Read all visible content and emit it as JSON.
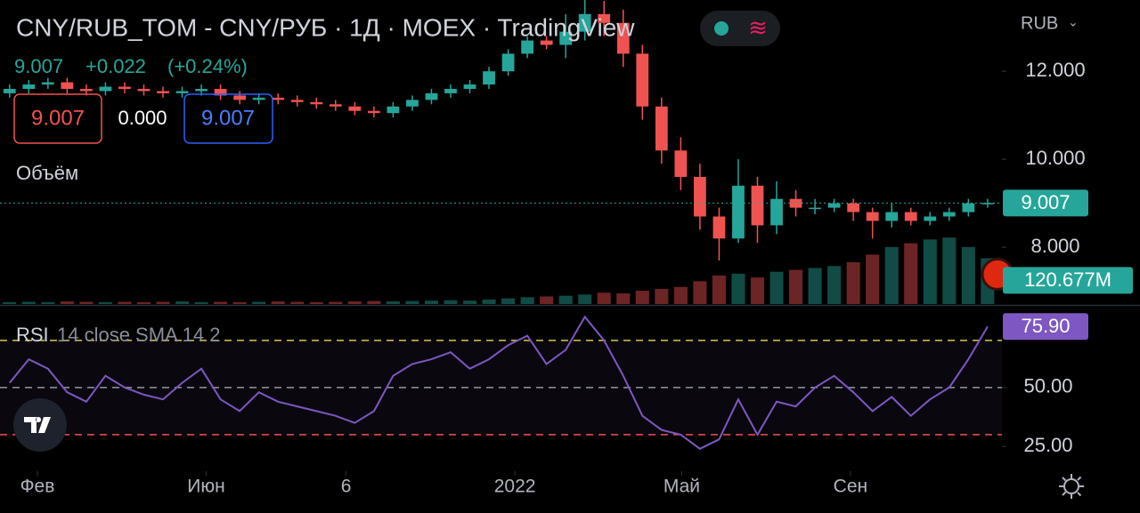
{
  "chart_data": {
    "type": "candlestick",
    "title": "CNY/RUB_TOM - CNY/РУБ · 1Д · MOEX · TradingView",
    "last_price": "9.007",
    "change": "+0.022",
    "change_percent": "(+0.24%)",
    "ohlc_boxes": [
      "9.007",
      "0.000",
      "9.007"
    ],
    "volume_label": "Объём",
    "currency": "RUB",
    "price_tag": "9.007",
    "volume_tag": "120.677M",
    "up_color": "#26a69a",
    "down_color": "#ef5350",
    "x": [
      1,
      3,
      5,
      7,
      9,
      11,
      13,
      15,
      17,
      19,
      21,
      23,
      25,
      27,
      29,
      31,
      33,
      35,
      37,
      39,
      41,
      43,
      45,
      47,
      49,
      51,
      53,
      55,
      57,
      59,
      61,
      63,
      65,
      67,
      69,
      71,
      73,
      75,
      77,
      79,
      81,
      83,
      85,
      87,
      89,
      91,
      93,
      95,
      97,
      99,
      101,
      103
    ],
    "open": [
      11.5,
      11.6,
      11.7,
      11.75,
      11.6,
      11.55,
      11.65,
      11.6,
      11.55,
      11.5,
      11.55,
      11.6,
      11.45,
      11.35,
      11.4,
      11.35,
      11.3,
      11.25,
      11.2,
      11.1,
      11.05,
      11.2,
      11.35,
      11.5,
      11.6,
      11.7,
      12.0,
      12.4,
      12.7,
      12.6,
      12.9,
      13.3,
      13.1,
      12.4,
      11.2,
      10.2,
      9.6,
      8.7,
      8.2,
      9.4,
      8.5,
      9.1,
      8.9,
      8.9,
      9.0,
      8.8,
      8.6,
      8.8,
      8.6,
      8.7,
      8.8,
      9.0
    ],
    "high": [
      11.7,
      11.8,
      11.85,
      11.85,
      11.7,
      11.75,
      11.75,
      11.7,
      11.65,
      11.65,
      11.7,
      11.7,
      11.55,
      11.5,
      11.5,
      11.45,
      11.4,
      11.35,
      11.3,
      11.2,
      11.3,
      11.45,
      11.6,
      11.7,
      11.8,
      12.1,
      12.5,
      12.8,
      12.8,
      13.3,
      13.7,
      13.6,
      13.4,
      12.6,
      11.4,
      10.5,
      9.9,
      8.9,
      10.0,
      9.6,
      9.5,
      9.3,
      9.1,
      9.1,
      9.1,
      8.9,
      9.0,
      8.9,
      8.8,
      8.9,
      9.1,
      9.1
    ],
    "low": [
      11.4,
      11.5,
      11.6,
      11.5,
      11.45,
      11.45,
      11.5,
      11.45,
      11.4,
      11.4,
      11.45,
      11.35,
      11.25,
      11.25,
      11.25,
      11.2,
      11.15,
      11.1,
      11.0,
      10.95,
      10.95,
      11.1,
      11.25,
      11.4,
      11.5,
      11.6,
      11.9,
      12.3,
      12.5,
      12.3,
      12.7,
      12.8,
      12.1,
      10.9,
      9.9,
      9.3,
      8.4,
      7.7,
      8.1,
      8.1,
      8.3,
      8.7,
      8.75,
      8.8,
      8.6,
      8.2,
      8.45,
      8.5,
      8.5,
      8.6,
      8.7,
      8.9
    ],
    "close": [
      11.6,
      11.7,
      11.75,
      11.6,
      11.55,
      11.65,
      11.6,
      11.55,
      11.5,
      11.55,
      11.6,
      11.45,
      11.35,
      11.4,
      11.35,
      11.3,
      11.25,
      11.2,
      11.1,
      11.05,
      11.2,
      11.35,
      11.5,
      11.6,
      11.7,
      12.0,
      12.4,
      12.7,
      12.6,
      12.9,
      13.3,
      13.1,
      12.4,
      11.2,
      10.2,
      9.6,
      8.7,
      8.2,
      9.4,
      8.5,
      9.1,
      8.9,
      8.9,
      9.0,
      8.8,
      8.6,
      8.8,
      8.6,
      8.7,
      8.8,
      9.0,
      9.007
    ],
    "volume": [
      5,
      6,
      5,
      7,
      6,
      5,
      6,
      5,
      6,
      7,
      5,
      6,
      5,
      6,
      7,
      6,
      5,
      6,
      7,
      8,
      7,
      8,
      9,
      10,
      9,
      12,
      15,
      18,
      20,
      22,
      25,
      30,
      28,
      35,
      40,
      45,
      60,
      75,
      80,
      70,
      85,
      90,
      95,
      100,
      110,
      130,
      150,
      160,
      170,
      175,
      150,
      120.677
    ],
    "xlim": [
      0,
      104.5
    ],
    "xticks": [
      {
        "value": 3.9,
        "label": "Фев"
      },
      {
        "value": 21.5,
        "label": "Июн"
      },
      {
        "value": 36.1,
        "label": "6"
      },
      {
        "value": 53.7,
        "label": "2022"
      },
      {
        "value": 71.1,
        "label": "Май"
      },
      {
        "value": 88.7,
        "label": "Сен"
      }
    ],
    "ylim": [
      6.71,
      13.62
    ],
    "yticks": [
      {
        "value": 8,
        "label": "8.000"
      },
      {
        "value": 10,
        "label": "10.000"
      },
      {
        "value": 12,
        "label": "12.000"
      }
    ],
    "vlim": [
      0,
      800
    ],
    "rsi": {
      "name": "RSI",
      "params": "14 close SMA 14 2",
      "color": "#7e57c2",
      "tag": "75.90",
      "values": [
        52,
        62,
        58,
        48,
        44,
        55,
        50,
        47,
        45,
        52,
        58,
        45,
        40,
        48,
        44,
        42,
        40,
        38,
        35,
        40,
        55,
        60,
        62,
        65,
        58,
        62,
        68,
        72,
        60,
        66,
        80,
        70,
        55,
        38,
        32,
        30,
        24,
        28,
        45,
        30,
        44,
        42,
        50,
        55,
        48,
        40,
        46,
        38,
        45,
        50,
        62,
        75.9
      ],
      "levels": [
        70,
        50,
        30
      ],
      "level_colors": [
        "#d8c84a",
        "#9598a1",
        "#ef5350"
      ],
      "ylim": [
        14.5,
        84.3
      ],
      "yticks": [
        {
          "value": 25,
          "label": "25.00"
        },
        {
          "value": 50,
          "label": "50.00"
        }
      ]
    }
  }
}
